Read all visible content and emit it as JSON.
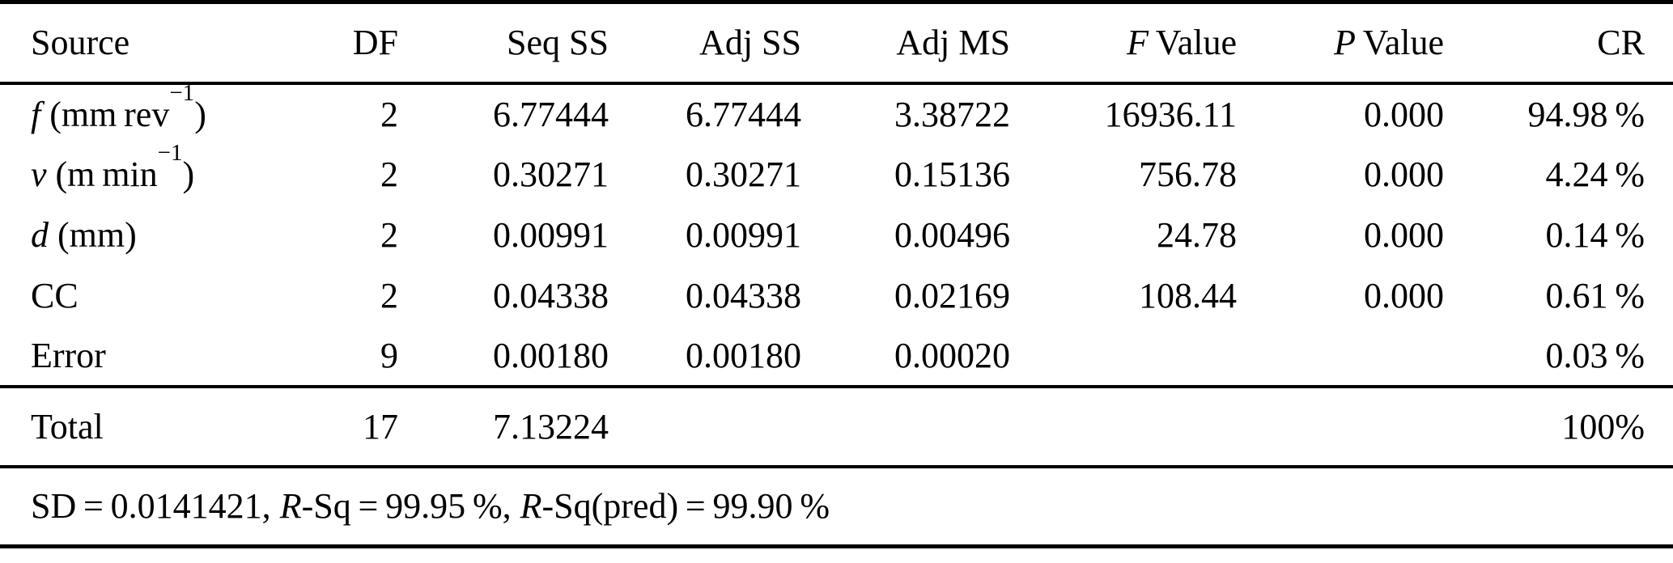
{
  "table": {
    "headers": [
      {
        "italic": "",
        "text": "Source"
      },
      {
        "italic": "",
        "text": "DF"
      },
      {
        "italic": "",
        "text": "Seq SS"
      },
      {
        "italic": "",
        "text": "Adj SS"
      },
      {
        "italic": "",
        "text": "Adj MS"
      },
      {
        "italic": "F",
        "text": " Value"
      },
      {
        "italic": "P",
        "text": " Value"
      },
      {
        "italic": "",
        "text": "CR"
      }
    ],
    "rows": [
      {
        "src_var": "f",
        "src_pre": " (mm rev",
        "src_sup": "−1",
        "src_post": ")",
        "df": "2",
        "seq_ss": "6.77444",
        "adj_ss": "6.77444",
        "adj_ms": "3.38722",
        "f_value": "16936.11",
        "p_value": "0.000",
        "cr": "94.98 %"
      },
      {
        "src_var": "v",
        "src_pre": " (m min",
        "src_sup": "−1",
        "src_post": ")",
        "df": "2",
        "seq_ss": "0.30271",
        "adj_ss": "0.30271",
        "adj_ms": "0.15136",
        "f_value": "756.78",
        "p_value": "0.000",
        "cr": "4.24 %"
      },
      {
        "src_var": "d",
        "src_pre": " (mm)",
        "src_sup": "",
        "src_post": "",
        "df": "2",
        "seq_ss": "0.00991",
        "adj_ss": "0.00991",
        "adj_ms": "0.00496",
        "f_value": "24.78",
        "p_value": "0.000",
        "cr": "0.14 %"
      },
      {
        "src_var": "",
        "src_pre": "CC",
        "src_sup": "",
        "src_post": "",
        "df": "2",
        "seq_ss": "0.04338",
        "adj_ss": "0.04338",
        "adj_ms": "0.02169",
        "f_value": "108.44",
        "p_value": "0.000",
        "cr": "0.61 %"
      },
      {
        "src_var": "",
        "src_pre": "Error",
        "src_sup": "",
        "src_post": "",
        "df": "9",
        "seq_ss": "0.00180",
        "adj_ss": "0.00180",
        "adj_ms": "0.00020",
        "f_value": "",
        "p_value": "",
        "cr": "0.03 %"
      }
    ],
    "total": {
      "label": "Total",
      "df": "17",
      "seq_ss": "7.13224",
      "cr": "100%"
    },
    "footer": {
      "p1": "SD = 0.0141421, ",
      "i1": "R",
      "p2": "-Sq = 99.95 %, ",
      "i2": "R",
      "p3": "-Sq(pred) = 99.90 %"
    }
  },
  "chart_data": {
    "type": "table",
    "columns": [
      "Source",
      "DF",
      "Seq SS",
      "Adj SS",
      "Adj MS",
      "F Value",
      "P Value",
      "CR"
    ],
    "rows": [
      [
        "f (mm rev⁻¹)",
        "2",
        "6.77444",
        "6.77444",
        "3.38722",
        "16936.11",
        "0.000",
        "94.98 %"
      ],
      [
        "v (m min⁻¹)",
        "2",
        "0.30271",
        "0.30271",
        "0.15136",
        "756.78",
        "0.000",
        "4.24 %"
      ],
      [
        "d (mm)",
        "2",
        "0.00991",
        "0.00991",
        "0.00496",
        "24.78",
        "0.000",
        "0.14 %"
      ],
      [
        "CC",
        "2",
        "0.04338",
        "0.04338",
        "0.02169",
        "108.44",
        "0.000",
        "0.61 %"
      ],
      [
        "Error",
        "9",
        "0.00180",
        "0.00180",
        "0.00020",
        "",
        "",
        "0.03 %"
      ],
      [
        "Total",
        "17",
        "7.13224",
        "",
        "",
        "",
        "",
        "100%"
      ]
    ],
    "note": "SD = 0.0141421, R-Sq = 99.95 %, R-Sq(pred) = 99.90 %"
  }
}
